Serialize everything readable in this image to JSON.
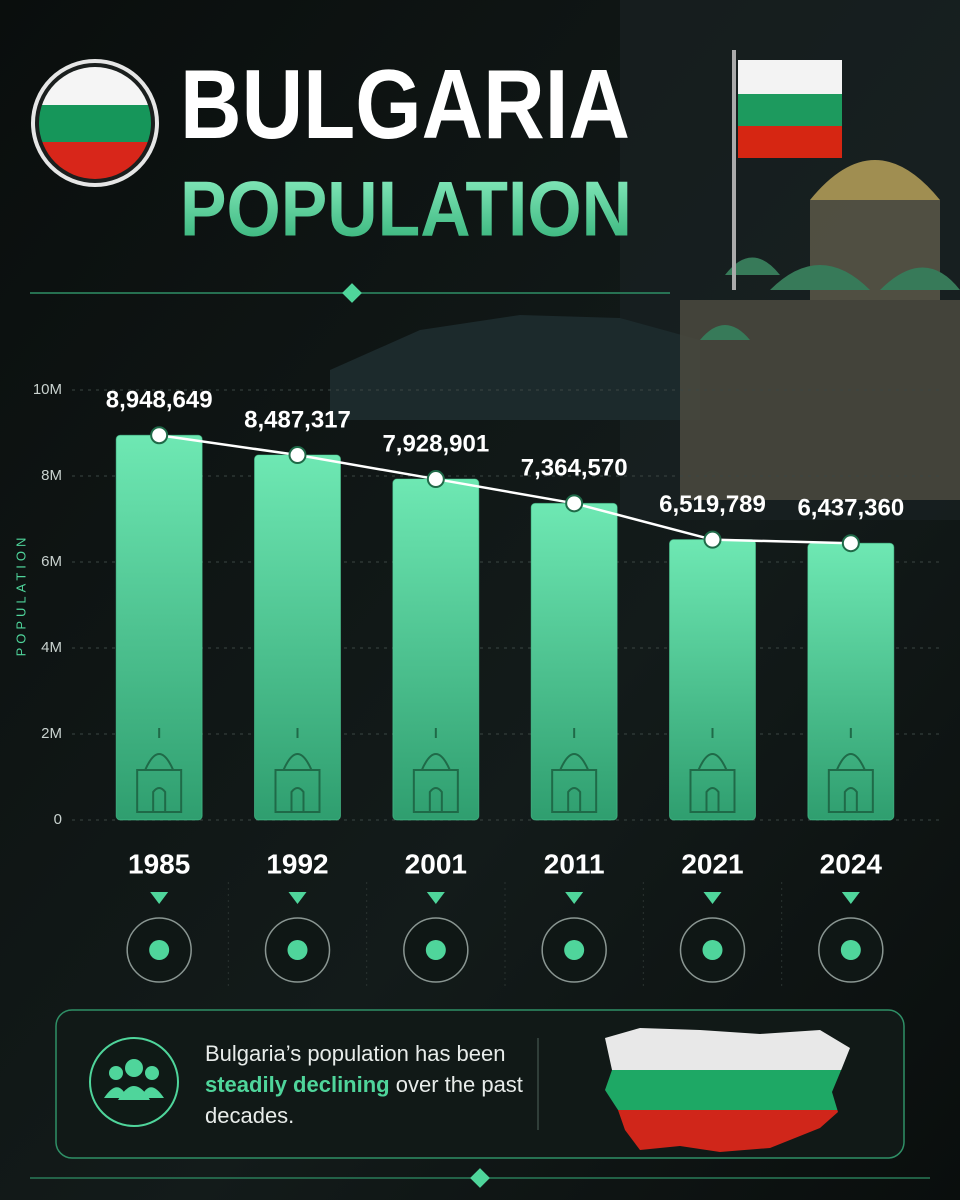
{
  "chart_data": {
    "type": "bar",
    "title": "BULGARIA",
    "subtitle": "POPULATION",
    "y_label": "POPULATION",
    "categories": [
      "1985",
      "1992",
      "2001",
      "2011",
      "2021",
      "2024"
    ],
    "values": [
      8948649,
      8487317,
      7928901,
      7364570,
      6519789,
      6437360
    ],
    "value_labels": [
      "8,948,649",
      "8,487,317",
      "7,928,901",
      "7,364,570",
      "6,519,789",
      "6,437,360"
    ],
    "color": "#4fd59b",
    "line_color": "#ffffff",
    "ylim": [
      0,
      10000000
    ],
    "yticks": [
      0,
      {
        "value": 2000000,
        "label": "2M"
      },
      {
        "value": 4000000,
        "label": "4M"
      },
      {
        "value": 6000000,
        "label": "6M"
      },
      {
        "value": 8000000,
        "label": "8M"
      },
      {
        "value": 10000000,
        "label": "10M"
      }
    ],
    "grid": true,
    "annotation": [
      "Bulgaria’s population has been",
      "steadily declining",
      "over the past decades."
    ]
  }
}
